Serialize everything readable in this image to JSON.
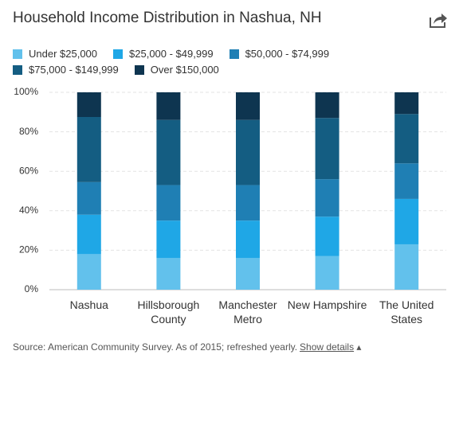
{
  "chart_data": {
    "type": "stacked_bar",
    "title": "Household Income Distribution in Nashua, NH",
    "categories": [
      "Nashua",
      "Hillsborough County",
      "Manchester Metro",
      "New Hampshire",
      "The United States"
    ],
    "series": [
      {
        "name": "Under $25,000",
        "color": "#62c1ec",
        "values": [
          18,
          16,
          16,
          17,
          23
        ]
      },
      {
        "name": "$25,000 - $49,999",
        "color": "#1fa7e6",
        "values": [
          20,
          19,
          19,
          20,
          23
        ]
      },
      {
        "name": "$50,000 - $74,999",
        "color": "#1f7fb4",
        "values": [
          16.5,
          18,
          18,
          19,
          18
        ]
      },
      {
        "name": "$75,000 - $149,999",
        "color": "#145d82",
        "values": [
          33,
          33,
          33,
          31,
          25
        ]
      },
      {
        "name": "Over $150,000",
        "color": "#0e3550",
        "values": [
          12.5,
          14,
          14,
          13,
          11
        ]
      }
    ],
    "ylim": [
      0,
      100
    ],
    "yticks": [
      {
        "value": 0,
        "label": "0%"
      },
      {
        "value": 20,
        "label": "20%"
      },
      {
        "value": 40,
        "label": "40%"
      },
      {
        "value": 60,
        "label": "60%"
      },
      {
        "value": 80,
        "label": "80%"
      },
      {
        "value": 100,
        "label": "100%"
      }
    ],
    "grid": true,
    "source": "Source: American Community Survey. As of 2015; refreshed yearly.",
    "details_link": "Show details"
  }
}
